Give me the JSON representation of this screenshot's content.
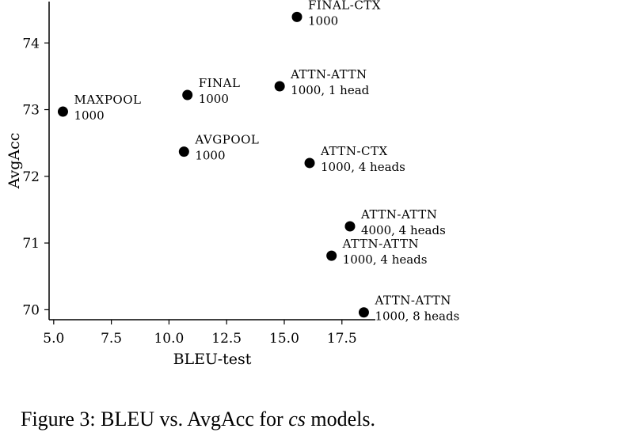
{
  "chart_data": {
    "type": "scatter",
    "xlabel": "BLEU-test",
    "ylabel": "AvgAcc",
    "xlim": [
      4.8,
      18.95
    ],
    "ylim": [
      69.85,
      74.62
    ],
    "xticks": [
      5.0,
      7.5,
      10.0,
      12.5,
      15.0,
      17.5
    ],
    "xtick_labels": [
      "5.0",
      "7.5",
      "10.0",
      "12.5",
      "15.0",
      "17.5"
    ],
    "yticks": [
      70,
      71,
      72,
      73,
      74
    ],
    "ytick_labels": [
      "70",
      "71",
      "72",
      "73",
      "74"
    ],
    "grid": false,
    "marker_color": "#000000",
    "points": [
      {
        "x": 5.4,
        "y": 72.97,
        "name": "MAXPOOL",
        "sub": "1000"
      },
      {
        "x": 10.8,
        "y": 73.22,
        "name": "FINAL",
        "sub": "1000"
      },
      {
        "x": 10.65,
        "y": 72.37,
        "name": "AVGPOOL",
        "sub": "1000"
      },
      {
        "x": 15.55,
        "y": 74.39,
        "name": "FINAL-CTX",
        "sub": "1000"
      },
      {
        "x": 14.8,
        "y": 73.35,
        "name": "ATTN-ATTN",
        "sub": "1000, 1 head"
      },
      {
        "x": 16.1,
        "y": 72.2,
        "name": "ATTN-CTX",
        "sub": "1000, 4 heads"
      },
      {
        "x": 17.85,
        "y": 71.25,
        "name": "ATTN-ATTN",
        "sub": "4000, 4 heads"
      },
      {
        "x": 17.05,
        "y": 70.81,
        "name": "ATTN-ATTN",
        "sub": "1000, 4 heads"
      },
      {
        "x": 18.45,
        "y": 69.96,
        "name": "ATTN-ATTN",
        "sub": "1000, 8 heads"
      }
    ]
  },
  "caption": {
    "prefix": "Figure 3: BLEU vs. AvgAcc for ",
    "emph": "cs",
    "suffix": " models."
  }
}
